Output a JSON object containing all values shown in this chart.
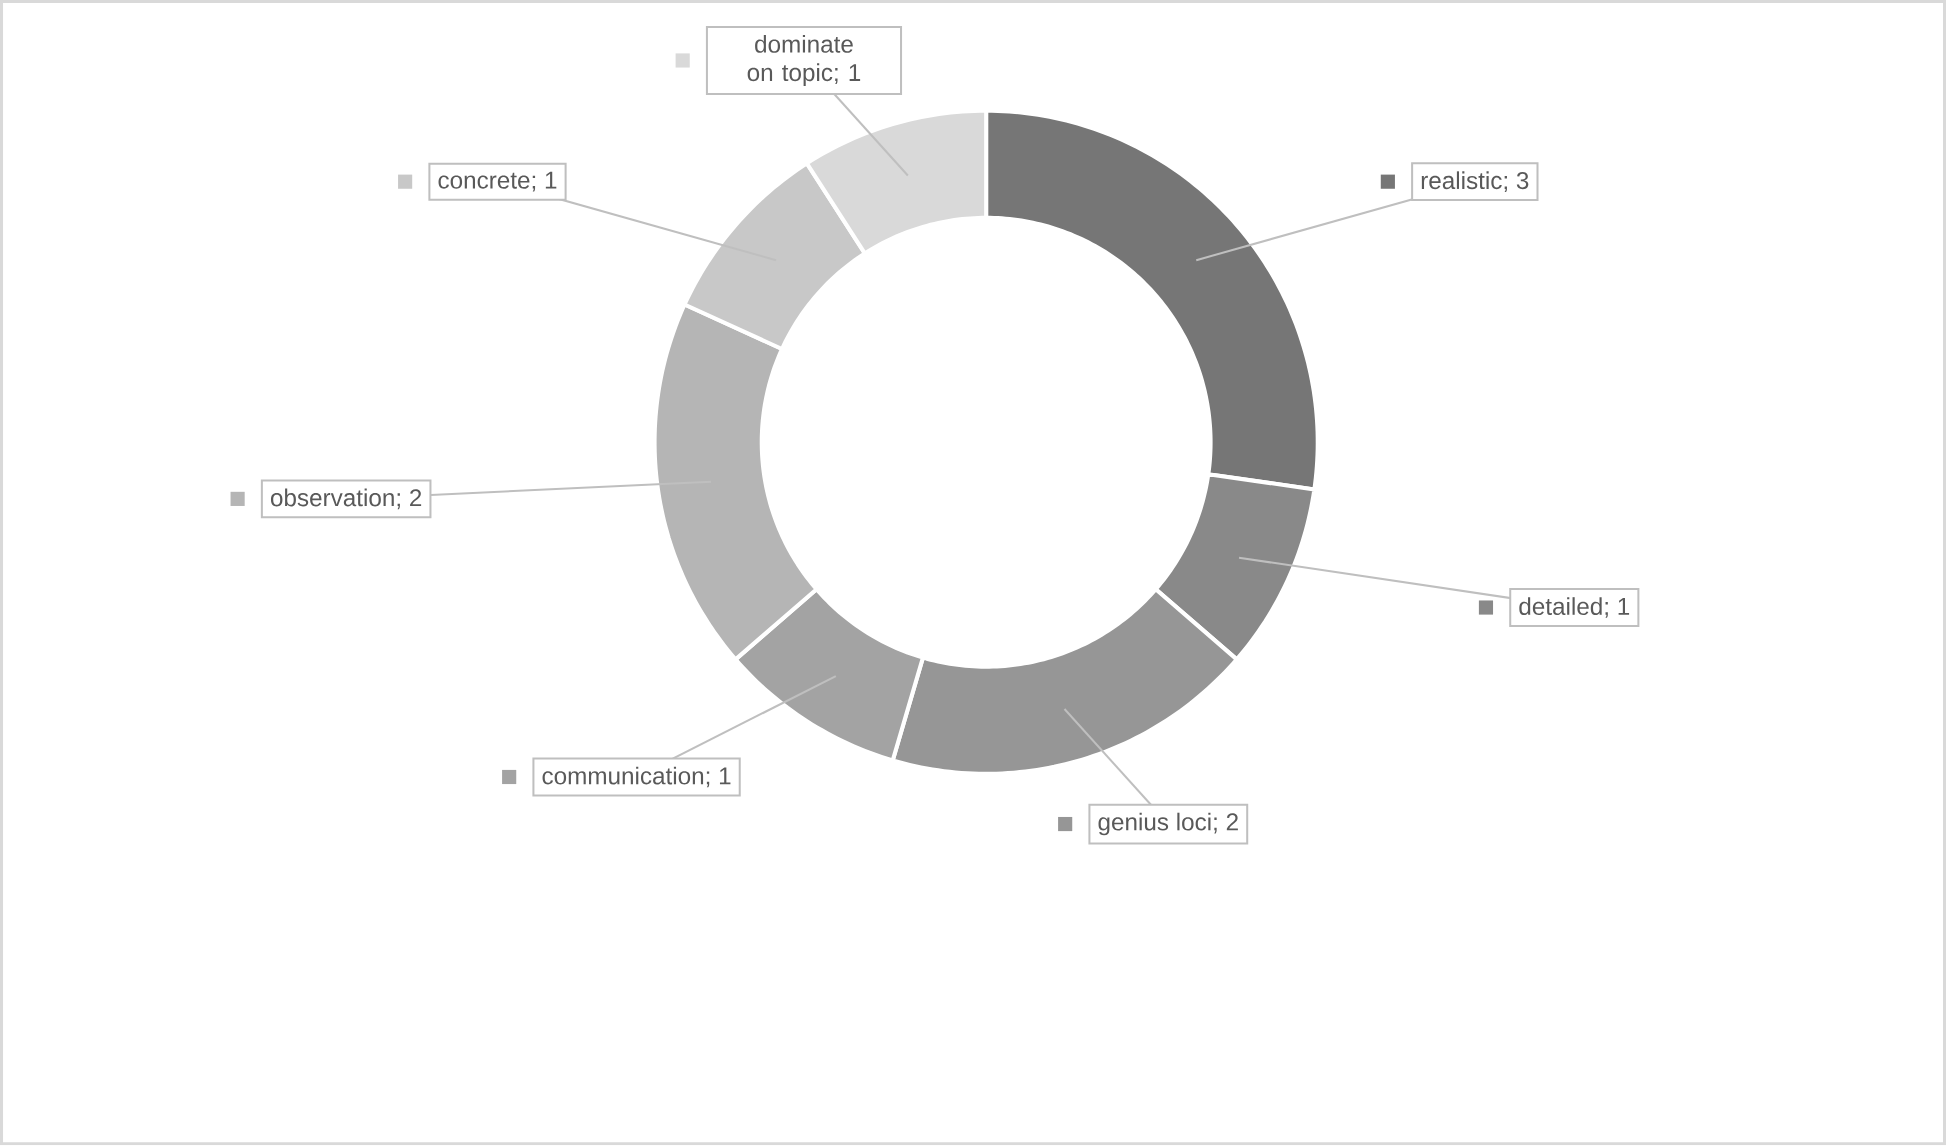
{
  "chart_data": {
    "type": "donut",
    "categories": [
      "realistic; 3",
      "detailed; 1",
      "genius loci; 2",
      "communication; 1",
      "observation; 2",
      "concrete; 1",
      "dominate on topic; 1"
    ],
    "values": [
      3,
      1,
      2,
      1,
      2,
      1,
      1
    ],
    "colors": [
      "#767676",
      "#898989",
      "#969696",
      "#a3a3a3",
      "#b5b5b5",
      "#c8c8c8",
      "#d9d9d9"
    ],
    "legend": "top left"
  }
}
